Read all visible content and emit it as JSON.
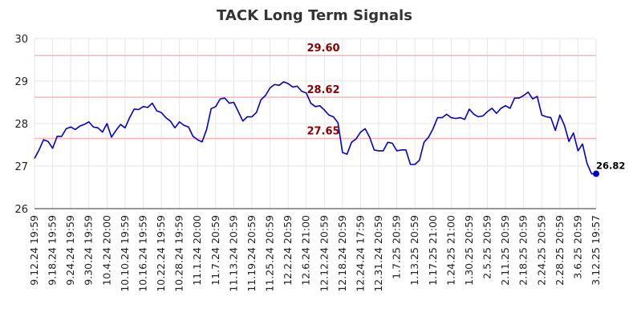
{
  "chart_data": {
    "type": "line",
    "title": "TACK Long Term Signals",
    "xlabel": "",
    "ylabel": "",
    "ylim": [
      26,
      30
    ],
    "y_ticks": [
      "26",
      "27",
      "28",
      "29",
      "30"
    ],
    "x_tick_labels": [
      "9.12.24 19:59",
      "9.18.24 19:59",
      "9.24.24 19:59",
      "9.30.24 19:59",
      "10.4.24 20:00",
      "10.10.24 19:59",
      "10.16.24 19:59",
      "10.22.24 19:59",
      "10.28.24 19:59",
      "11.1.24 20:00",
      "11.7.24 20:59",
      "11.13.24 20:59",
      "11.19.24 20:59",
      "11.25.24 20:59",
      "12.2.24 20:59",
      "12.6.24 21:00",
      "12.12.24 20:59",
      "12.18.24 20:59",
      "12.24.24 17:59",
      "12.31.24 20:59",
      "1.7.25 20:59",
      "1.13.25 20:59",
      "1.17.25 21:00",
      "1.24.25 21:00",
      "1.30.25 20:59",
      "2.5.25 20:59",
      "2.11.25 20:59",
      "2.18.25 20:59",
      "2.24.25 20:59",
      "2.28.25 20:59",
      "3.6.25 20:59",
      "3.12.25 19:57"
    ],
    "grid": true,
    "reference_lines": [
      {
        "value": 29.6,
        "label": "29.60",
        "color": "#ffb3b3"
      },
      {
        "value": 28.62,
        "label": "28.62",
        "color": "#ffb3b3"
      },
      {
        "value": 27.65,
        "label": "27.65",
        "color": "#ffb3b3"
      }
    ],
    "reference_label_color": "#8b0000",
    "series": [
      {
        "color": "#0000cc",
        "values": [
          27.18,
          27.38,
          27.62,
          27.58,
          27.42,
          27.7,
          27.7,
          27.88,
          27.92,
          27.86,
          27.94,
          27.98,
          28.04,
          27.92,
          27.9,
          27.8,
          28.0,
          27.68,
          27.84,
          27.98,
          27.9,
          28.14,
          28.34,
          28.33,
          28.4,
          28.38,
          28.48,
          28.3,
          28.26,
          28.14,
          28.06,
          27.9,
          28.04,
          27.96,
          27.92,
          27.7,
          27.62,
          27.57,
          27.86,
          28.35,
          28.4,
          28.58,
          28.6,
          28.48,
          28.5,
          28.28,
          28.06,
          28.16,
          28.16,
          28.26,
          28.56,
          28.66,
          28.84,
          28.92,
          28.9,
          28.98,
          28.94,
          28.86,
          28.88,
          28.76,
          28.72,
          28.48,
          28.4,
          28.42,
          28.32,
          28.2,
          28.16,
          28.02,
          27.32,
          27.28,
          27.56,
          27.64,
          27.8,
          27.88,
          27.68,
          27.38,
          27.36,
          27.36,
          27.56,
          27.54,
          27.36,
          27.38,
          27.38,
          27.04,
          27.04,
          27.14,
          27.56,
          27.68,
          27.88,
          28.14,
          28.14,
          28.22,
          28.14,
          28.12,
          28.14,
          28.1,
          28.34,
          28.22,
          28.16,
          28.18,
          28.28,
          28.36,
          28.24,
          28.36,
          28.42,
          28.36,
          28.6,
          28.6,
          28.66,
          28.74,
          28.58,
          28.64,
          28.2,
          28.16,
          28.14,
          27.84,
          28.2,
          27.96,
          27.58,
          27.78,
          27.36,
          27.52,
          27.06,
          26.82,
          26.82
        ]
      }
    ],
    "last_value_label": "26.82"
  }
}
